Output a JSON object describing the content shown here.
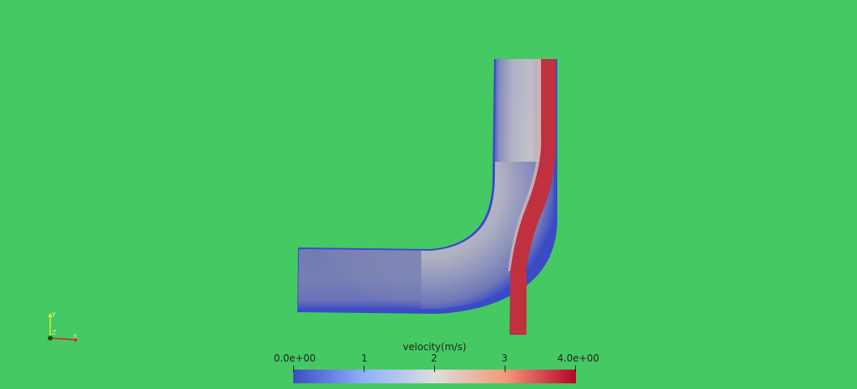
{
  "scalar_bar": {
    "title": "velocity(m/s)",
    "min_label": "0.0e+00",
    "max_label": "4.0e+00",
    "mid_labels": [
      "1",
      "2",
      "3"
    ],
    "range": [
      0,
      4
    ],
    "colors": {
      "low": "#3b4cc0",
      "mid": "#dddddd",
      "high": "#b40426"
    }
  },
  "axes": {
    "x": "X",
    "y": "Y",
    "z": "Z",
    "x_color": "#d02020",
    "y_color": "#e8e820",
    "z_color": "#20a020"
  },
  "colors": {
    "background": "#44c963"
  }
}
